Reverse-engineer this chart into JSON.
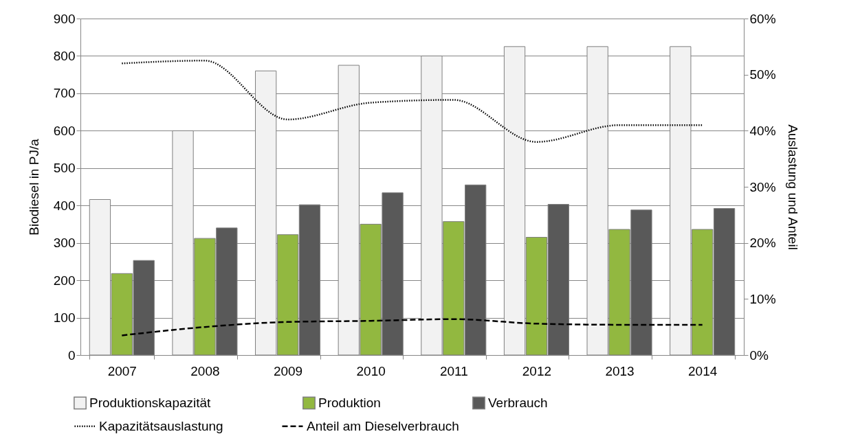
{
  "chart_data": {
    "type": "bar",
    "ylabel": "Biodiesel in PJ/a",
    "y2label": "Auslastung und Anteil",
    "categories": [
      "2007",
      "2008",
      "2009",
      "2010",
      "2011",
      "2012",
      "2013",
      "2014"
    ],
    "series": [
      {
        "name": "Produktionskapazität",
        "color": "#f2f2f2",
        "values": [
          416,
          600,
          760,
          775,
          800,
          825,
          825,
          825
        ]
      },
      {
        "name": "Produktion",
        "color": "#92b840",
        "values": [
          218,
          312,
          322,
          350,
          357,
          315,
          336,
          336
        ]
      },
      {
        "name": "Verbrauch",
        "color": "#595959",
        "values": [
          253,
          340,
          402,
          434,
          455,
          403,
          388,
          392
        ]
      },
      {
        "name": "Kapazitätsauslastung",
        "type": "line",
        "axis": "y2",
        "color": "#000000",
        "line_style": "dotted",
        "values": [
          52,
          52.5,
          42,
          45,
          45.5,
          38,
          41,
          41
        ]
      },
      {
        "name": "Anteil am Dieselverbrauch",
        "type": "line",
        "axis": "y2",
        "color": "#000000",
        "line_style": "dashed",
        "values": [
          3.5,
          5,
          5.9,
          6.1,
          6.4,
          5.6,
          5.4,
          5.4
        ]
      }
    ],
    "ylim": [
      0,
      900
    ],
    "yticks": [
      0,
      100,
      200,
      300,
      400,
      500,
      600,
      700,
      800,
      900
    ],
    "y2lim": [
      0,
      60
    ],
    "y2ticks": [
      {
        "value": 0,
        "label": "0%"
      },
      {
        "value": 10,
        "label": "10%"
      },
      {
        "value": 20,
        "label": "20%"
      },
      {
        "value": 30,
        "label": "30%"
      },
      {
        "value": 40,
        "label": "40%"
      },
      {
        "value": 50,
        "label": "50%"
      },
      {
        "value": 60,
        "label": "60%"
      }
    ],
    "grid": "y",
    "legend": "bottom",
    "marker": "none"
  }
}
